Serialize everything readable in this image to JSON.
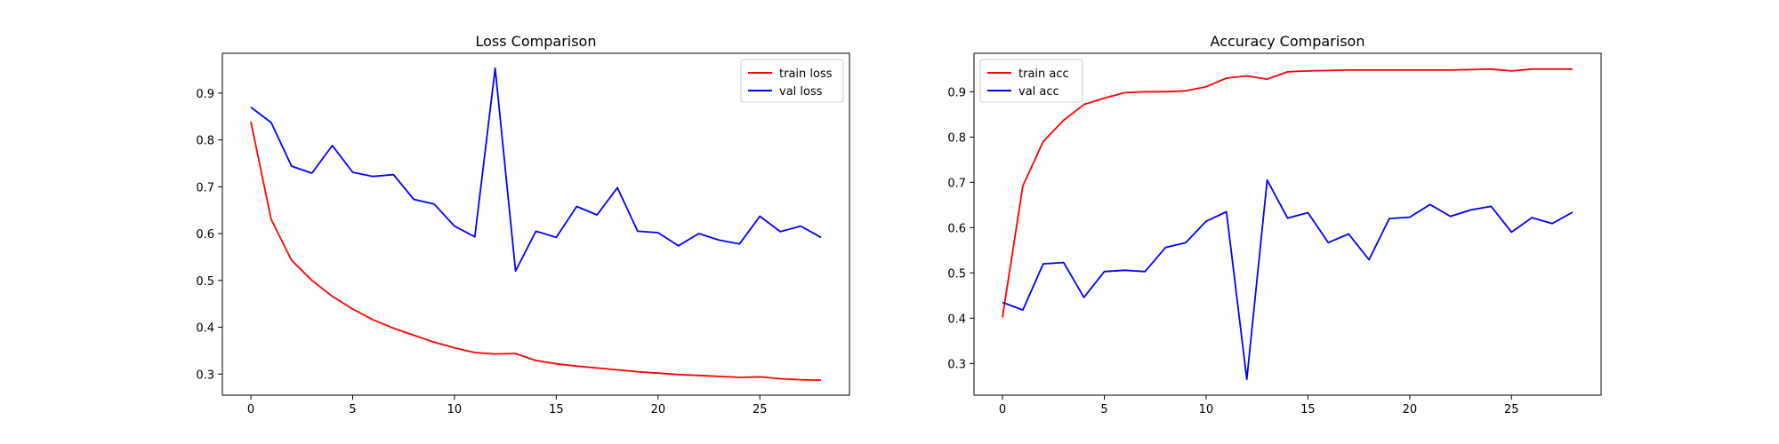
{
  "chart_data": [
    {
      "type": "line",
      "title": "Loss Comparison",
      "xlabel": "",
      "ylabel": "",
      "xlim": [
        -1.4,
        29.4
      ],
      "ylim": [
        0.255,
        0.985
      ],
      "xticks": [
        0,
        5,
        10,
        15,
        20,
        25
      ],
      "yticks": [
        0.3,
        0.4,
        0.5,
        0.6,
        0.7,
        0.8,
        0.9
      ],
      "legend_position": "top-right",
      "grid": false,
      "x": [
        0,
        1,
        2,
        3,
        4,
        5,
        6,
        7,
        8,
        9,
        10,
        11,
        12,
        13,
        14,
        15,
        16,
        17,
        18,
        19,
        20,
        21,
        22,
        23,
        24,
        25,
        26,
        27,
        28
      ],
      "series": [
        {
          "name": "train loss",
          "color": "#ff0000",
          "values": [
            0.839,
            0.63,
            0.543,
            0.5,
            0.466,
            0.439,
            0.416,
            0.398,
            0.383,
            0.368,
            0.356,
            0.346,
            0.343,
            0.344,
            0.329,
            0.322,
            0.317,
            0.313,
            0.309,
            0.305,
            0.302,
            0.299,
            0.297,
            0.295,
            0.293,
            0.294,
            0.29,
            0.288,
            0.287
          ]
        },
        {
          "name": "val loss",
          "color": "#0000ff",
          "values": [
            0.87,
            0.837,
            0.744,
            0.729,
            0.788,
            0.731,
            0.722,
            0.726,
            0.673,
            0.663,
            0.616,
            0.593,
            0.953,
            0.52,
            0.605,
            0.592,
            0.658,
            0.64,
            0.698,
            0.605,
            0.602,
            0.574,
            0.6,
            0.586,
            0.578,
            0.637,
            0.604,
            0.616,
            0.592
          ]
        }
      ]
    },
    {
      "type": "line",
      "title": "Accuracy Comparison",
      "xlabel": "",
      "ylabel": "",
      "xlim": [
        -1.4,
        29.4
      ],
      "ylim": [
        0.23,
        0.985
      ],
      "xticks": [
        0,
        5,
        10,
        15,
        20,
        25
      ],
      "yticks": [
        0.3,
        0.4,
        0.5,
        0.6,
        0.7,
        0.8,
        0.9
      ],
      "legend_position": "top-left",
      "grid": false,
      "x": [
        0,
        1,
        2,
        3,
        4,
        5,
        6,
        7,
        8,
        9,
        10,
        11,
        12,
        13,
        14,
        15,
        16,
        17,
        18,
        19,
        20,
        21,
        22,
        23,
        24,
        25,
        26,
        27,
        28
      ],
      "series": [
        {
          "name": "train acc",
          "color": "#ff0000",
          "values": [
            0.402,
            0.692,
            0.79,
            0.837,
            0.872,
            0.886,
            0.898,
            0.9,
            0.9,
            0.902,
            0.911,
            0.93,
            0.935,
            0.928,
            0.944,
            0.946,
            0.947,
            0.948,
            0.948,
            0.948,
            0.948,
            0.948,
            0.948,
            0.949,
            0.95,
            0.946,
            0.95,
            0.95,
            0.95
          ]
        },
        {
          "name": "val acc",
          "color": "#0000ff",
          "values": [
            0.435,
            0.418,
            0.52,
            0.523,
            0.446,
            0.503,
            0.506,
            0.503,
            0.556,
            0.567,
            0.614,
            0.635,
            0.265,
            0.705,
            0.621,
            0.633,
            0.567,
            0.586,
            0.529,
            0.62,
            0.623,
            0.651,
            0.625,
            0.639,
            0.647,
            0.59,
            0.622,
            0.609,
            0.634
          ]
        }
      ]
    }
  ]
}
